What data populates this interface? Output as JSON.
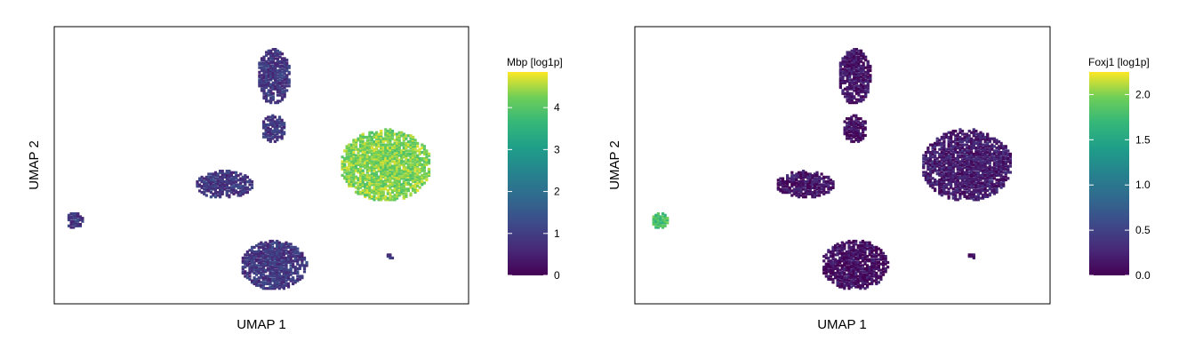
{
  "chart_data": [
    {
      "type": "heatmap",
      "xlabel": "UMAP 1",
      "ylabel": "UMAP 2",
      "legend_title": "Mbp [log1p]",
      "colormap": "viridis",
      "color_range": [
        0,
        4.85
      ],
      "color_ticks": [
        0,
        1,
        2,
        3,
        4
      ],
      "color_tick_labels": [
        "0",
        "1",
        "2",
        "3",
        "4"
      ],
      "legend_position": "right",
      "xlim": [
        0,
        100
      ],
      "ylim": [
        0,
        100
      ],
      "clusters": [
        {
          "x": 53,
          "y": 82,
          "rx": 4,
          "ry": 10,
          "value": 0.9
        },
        {
          "x": 53,
          "y": 63,
          "rx": 3,
          "ry": 5,
          "value": 0.9
        },
        {
          "x": 41,
          "y": 43,
          "rx": 7,
          "ry": 5,
          "value": 0.9
        },
        {
          "x": 53,
          "y": 14,
          "rx": 8,
          "ry": 9,
          "value": 0.9
        },
        {
          "x": 5,
          "y": 30,
          "rx": 2,
          "ry": 3,
          "value": 0.9
        },
        {
          "x": 80,
          "y": 50,
          "rx": 11,
          "ry": 13,
          "value": 4.3
        },
        {
          "x": 81,
          "y": 17,
          "rx": 1,
          "ry": 1,
          "value": 0.9
        }
      ]
    },
    {
      "type": "heatmap",
      "xlabel": "UMAP 1",
      "ylabel": "UMAP 2",
      "legend_title": "Foxj1 [log1p]",
      "colormap": "viridis",
      "color_range": [
        0,
        2.25
      ],
      "color_ticks": [
        0,
        0.5,
        1,
        1.5,
        2
      ],
      "color_tick_labels": [
        "0.0",
        "0.5",
        "1.0",
        "1.5",
        "2.0"
      ],
      "legend_position": "right",
      "xlim": [
        0,
        100
      ],
      "ylim": [
        0,
        100
      ],
      "clusters": [
        {
          "x": 53,
          "y": 82,
          "rx": 4,
          "ry": 10,
          "value": 0.15
        },
        {
          "x": 53,
          "y": 63,
          "rx": 3,
          "ry": 5,
          "value": 0.1
        },
        {
          "x": 41,
          "y": 43,
          "rx": 7,
          "ry": 5,
          "value": 0.15
        },
        {
          "x": 53,
          "y": 14,
          "rx": 8,
          "ry": 9,
          "value": 0.1
        },
        {
          "x": 6,
          "y": 30,
          "rx": 2,
          "ry": 3,
          "value": 1.8
        },
        {
          "x": 80,
          "y": 50,
          "rx": 11,
          "ry": 13,
          "value": 0.2
        },
        {
          "x": 81,
          "y": 17,
          "rx": 1,
          "ry": 1,
          "value": 0.1
        }
      ]
    }
  ]
}
